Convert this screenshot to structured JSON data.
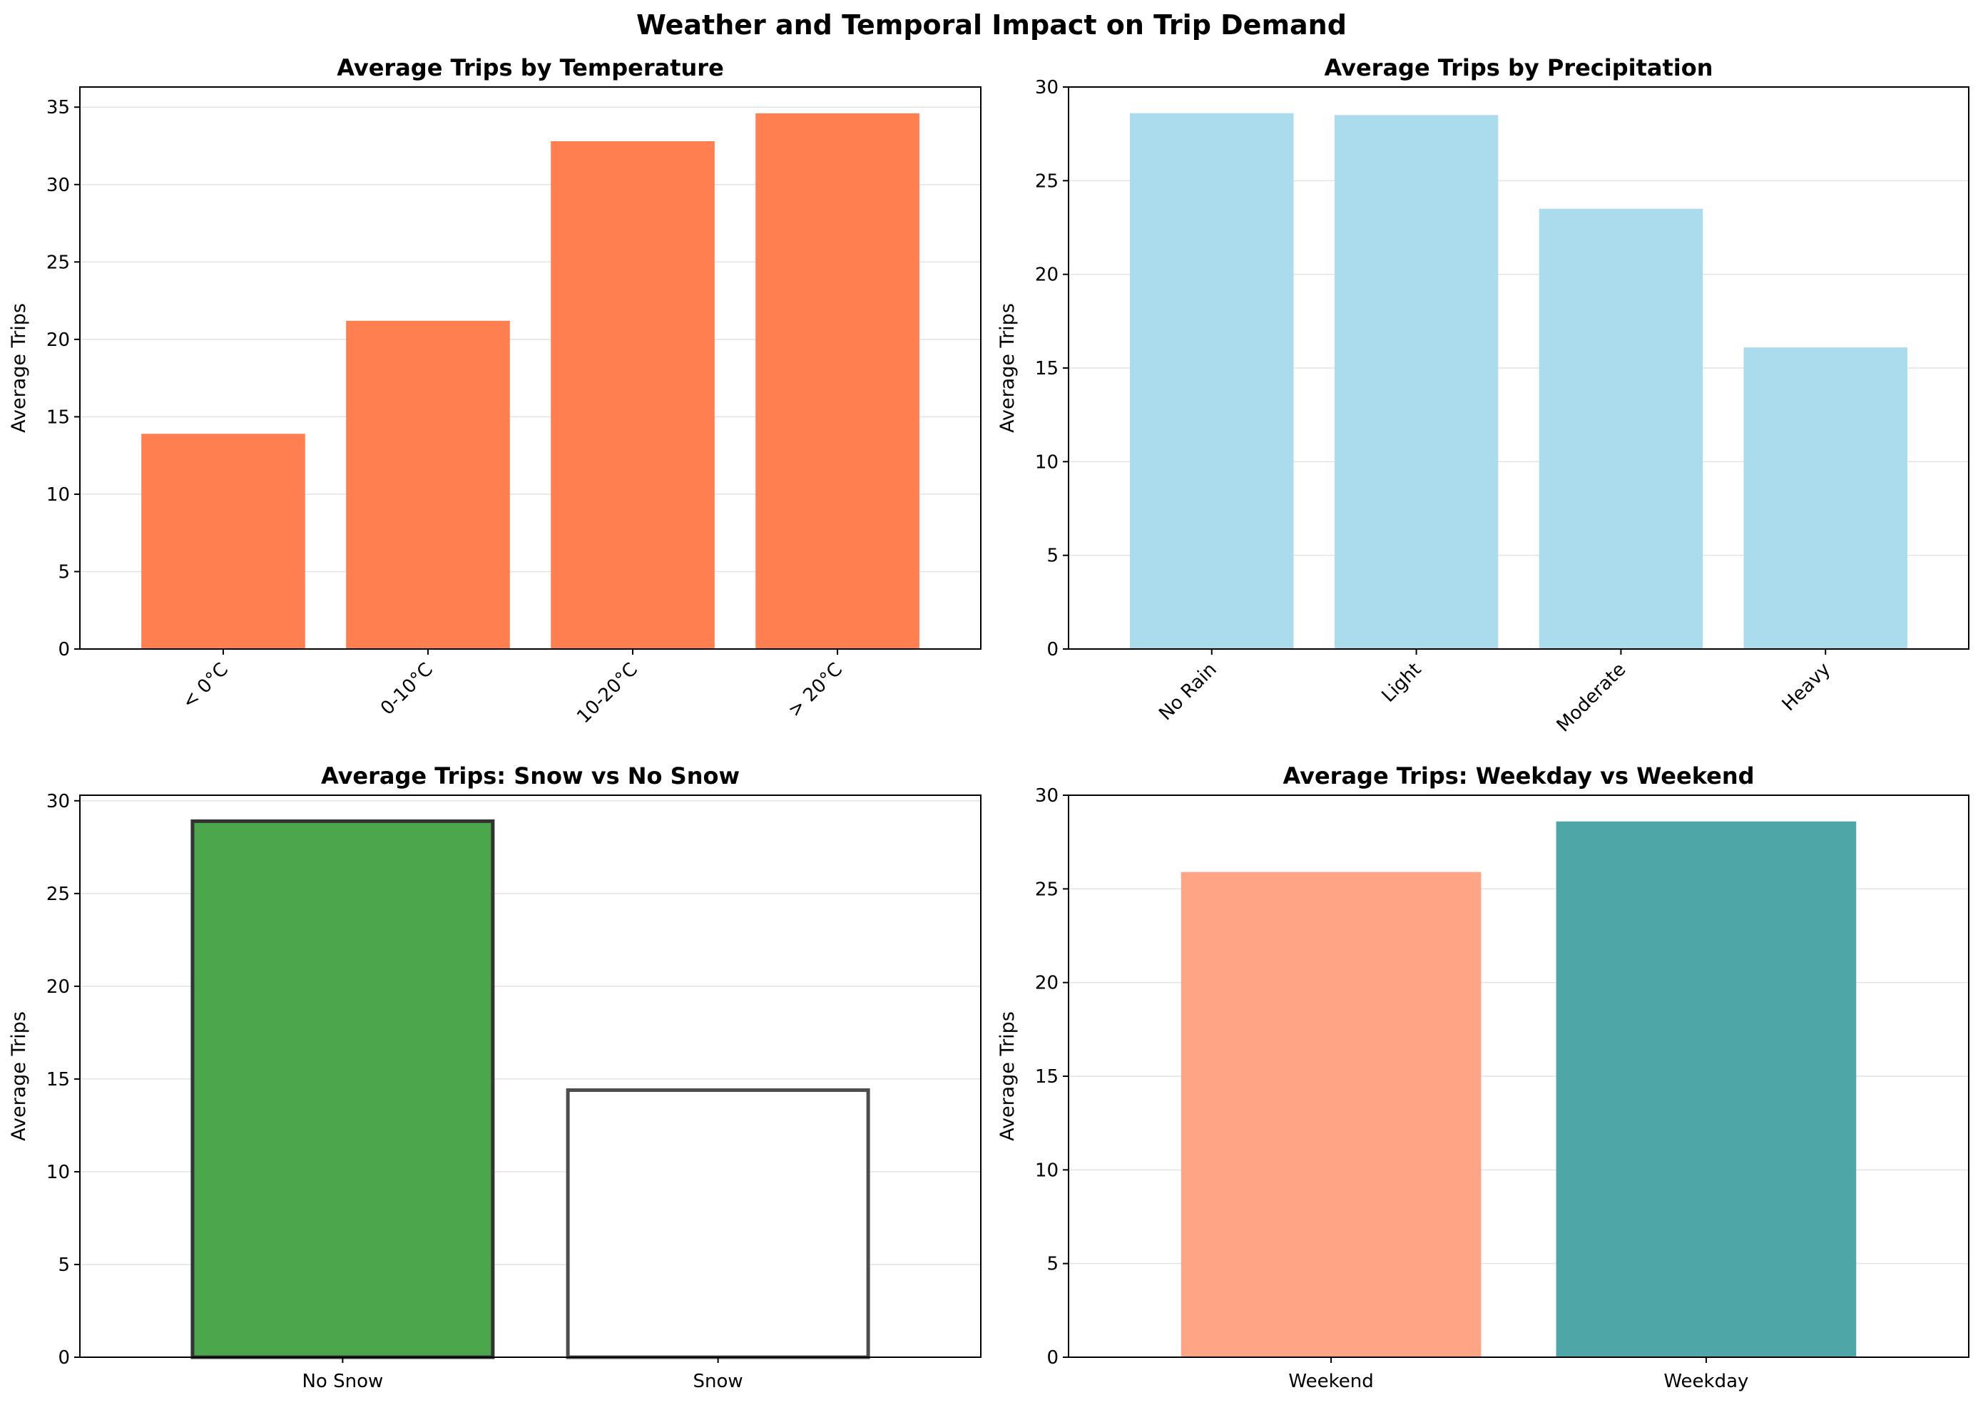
{
  "figure": {
    "title": "Weather and Temporal Impact on Trip Demand"
  },
  "chart_data": [
    {
      "type": "bar",
      "title": "Average Trips by Temperature",
      "xlabel": "",
      "ylabel": "Average Trips",
      "categories": [
        "< 0°C",
        "0-10°C",
        "10-20°C",
        "> 20°C"
      ],
      "values": [
        13.9,
        21.2,
        32.8,
        34.6
      ],
      "ylim": [
        0,
        36.3
      ],
      "yticks": [
        0,
        5,
        10,
        15,
        20,
        25,
        30,
        35
      ],
      "xtick_rotation": -45,
      "colors": [
        "#ff7f50",
        "#ff7f50",
        "#ff7f50",
        "#ff7f50"
      ],
      "edge_colors": [
        null,
        null,
        null,
        null
      ],
      "grid": "y"
    },
    {
      "type": "bar",
      "title": "Average Trips by Precipitation",
      "xlabel": "",
      "ylabel": "Average Trips",
      "categories": [
        "No Rain",
        "Light",
        "Moderate",
        "Heavy"
      ],
      "values": [
        28.6,
        28.5,
        23.5,
        16.1
      ],
      "ylim": [
        0,
        30
      ],
      "yticks": [
        0,
        5,
        10,
        15,
        20,
        25,
        30
      ],
      "xtick_rotation": -45,
      "colors": [
        "#abdcee",
        "#abdcee",
        "#abdcee",
        "#abdcee"
      ],
      "edge_colors": [
        null,
        null,
        null,
        null
      ],
      "grid": "y"
    },
    {
      "type": "bar",
      "title": "Average Trips: Snow vs No Snow",
      "xlabel": "",
      "ylabel": "Average Trips",
      "categories": [
        "No Snow",
        "Snow"
      ],
      "values": [
        28.9,
        14.4
      ],
      "ylim": [
        0,
        30.3
      ],
      "yticks": [
        0,
        5,
        10,
        15,
        20,
        25,
        30
      ],
      "xtick_rotation": 0,
      "colors": [
        "#4ca64c",
        "#ffffff"
      ],
      "edge_colors": [
        "#333333",
        "#4d4d4d"
      ],
      "grid": "y"
    },
    {
      "type": "bar",
      "title": "Average Trips: Weekday vs Weekend",
      "xlabel": "",
      "ylabel": "Average Trips",
      "categories": [
        "Weekend",
        "Weekday"
      ],
      "values": [
        25.9,
        28.6
      ],
      "ylim": [
        0,
        30
      ],
      "yticks": [
        0,
        5,
        10,
        15,
        20,
        25,
        30
      ],
      "xtick_rotation": 0,
      "colors": [
        "#ffa585",
        "#4ea6a6"
      ],
      "edge_colors": [
        null,
        null
      ],
      "grid": "y"
    }
  ]
}
